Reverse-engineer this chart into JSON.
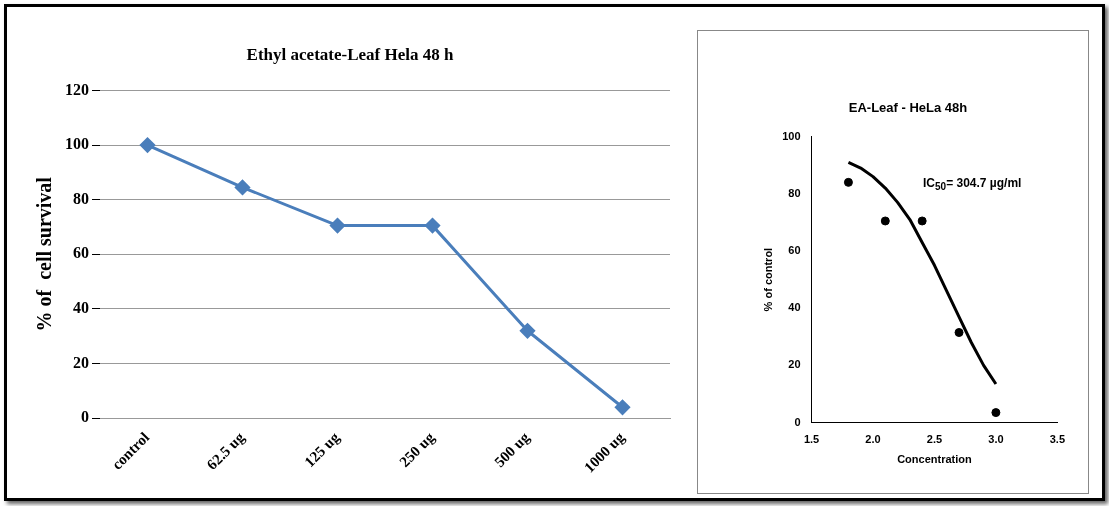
{
  "chart_data": [
    {
      "type": "line",
      "title": "Ethyl acetate-Leaf Hela 48 h",
      "ylabel": "% of  cell survival",
      "categories": [
        "control",
        "62.5 ug",
        "125 ug",
        "250 ug",
        "500 ug",
        "1000 ug"
      ],
      "series": [
        {
          "color": "#4a7ebb",
          "values": [
            100,
            84.5,
            70.5,
            70.5,
            32,
            4
          ]
        }
      ],
      "ylim": [
        0,
        120
      ],
      "yticks": [
        0,
        20,
        40,
        60,
        80,
        100,
        120
      ],
      "grid": "y",
      "legend": false,
      "marker": "diamond",
      "line_style": "solid"
    },
    {
      "type": "scatter",
      "title": "EA-Leaf - HeLa 48h",
      "xlabel": "Concentration",
      "ylabel": "% of control",
      "annotations": [
        "IC$_{50}$= 304.7 µg/ml"
      ],
      "series": [
        {
          "type": "scatter",
          "color": "#000000",
          "marker": "circle",
          "x": [
            1.8,
            2.1,
            2.4,
            2.7,
            3.0
          ],
          "values": [
            84,
            70.5,
            70.5,
            31.5,
            3.5
          ]
        },
        {
          "type": "line",
          "color": "#000000",
          "marker": "none",
          "x": [
            1.8,
            1.9,
            2.0,
            2.1,
            2.2,
            2.3,
            2.4,
            2.5,
            2.6,
            2.7,
            2.8,
            2.9,
            3.0
          ],
          "values": [
            91,
            89,
            86,
            82,
            77,
            71,
            63,
            55,
            46,
            37,
            28,
            20,
            13.5
          ]
        }
      ],
      "xlim": [
        1.5,
        3.5
      ],
      "xticks": [
        1.5,
        {
          "value": 2,
          "label": "2.0"
        },
        2.5,
        {
          "value": 3,
          "label": "3.0"
        },
        3.5
      ],
      "ylim": [
        0,
        100
      ],
      "yticks": [
        0,
        20,
        40,
        60,
        80,
        100
      ],
      "grid": false,
      "legend": false
    }
  ]
}
